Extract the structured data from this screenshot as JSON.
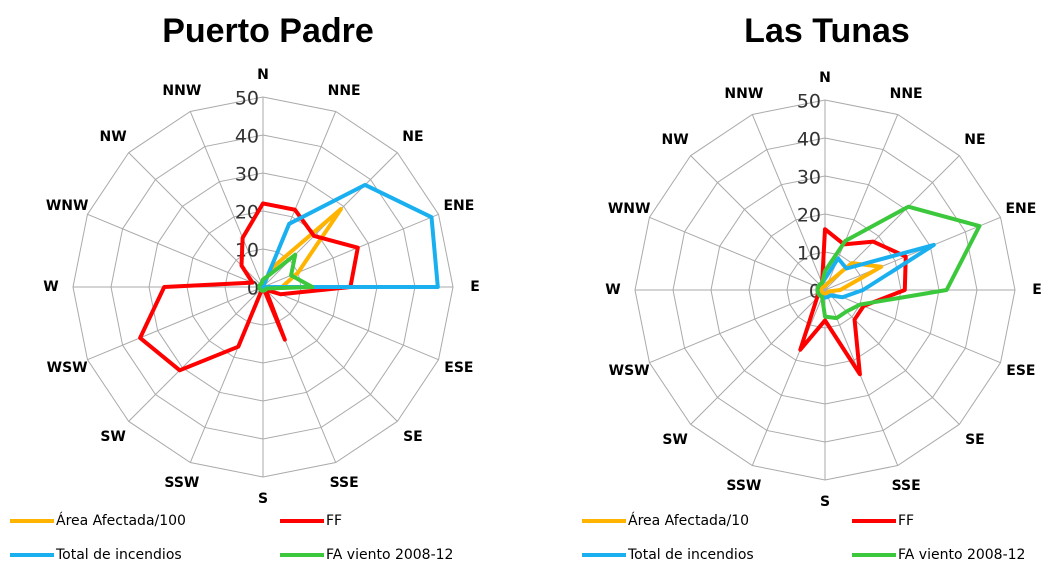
{
  "chart_data": [
    {
      "type": "radar",
      "title": "Puerto Padre",
      "categories": [
        "N",
        "NNE",
        "NE",
        "ENE",
        "E",
        "ESE",
        "SE",
        "SSE",
        "S",
        "SSW",
        "SW",
        "WSW",
        "W",
        "WNW",
        "NW",
        "NNW"
      ],
      "rlim": [
        0,
        50
      ],
      "rticks": [
        0,
        10,
        20,
        30,
        40,
        50
      ],
      "series": [
        {
          "name": "Área Afectada/100",
          "color": "#ffb400",
          "values": [
            0,
            5,
            29,
            10,
            5,
            0,
            0,
            0,
            0,
            0,
            0,
            0,
            0,
            0,
            0,
            0
          ]
        },
        {
          "name": "FF",
          "color": "#ff0000",
          "values": [
            22,
            22,
            19,
            27,
            23,
            5,
            1,
            15,
            0,
            17,
            31,
            35,
            26,
            3,
            8,
            14
          ]
        },
        {
          "name": "Total de incendios",
          "color": "#1ab0f0",
          "values": [
            0,
            18,
            38,
            48,
            46,
            0,
            0,
            0,
            0,
            0,
            0,
            0,
            0,
            0,
            0,
            0
          ]
        },
        {
          "name": "FA viento 2008-12",
          "color": "#3cc83c",
          "values": [
            2,
            3,
            12,
            8,
            13,
            1,
            1,
            1,
            1,
            1,
            1,
            1,
            1,
            1,
            1,
            1
          ]
        }
      ]
    },
    {
      "type": "radar",
      "title": "Las Tunas",
      "categories": [
        "N",
        "NNE",
        "NE",
        "ENE",
        "E",
        "ESE",
        "SE",
        "SSE",
        "S",
        "SSW",
        "SW",
        "WSW",
        "W",
        "WNW",
        "NW",
        "NNW"
      ],
      "rlim": [
        0,
        50
      ],
      "rticks": [
        0,
        10,
        20,
        30,
        40,
        50
      ],
      "series": [
        {
          "name": "Área Afectada/10",
          "color": "#ffb400",
          "values": [
            1,
            2,
            10,
            16,
            4,
            1,
            1,
            1,
            1,
            1,
            1,
            1,
            1,
            1,
            1,
            1
          ]
        },
        {
          "name": "FF",
          "color": "#ff0000",
          "values": [
            16,
            13,
            18,
            23,
            21,
            11,
            11,
            24,
            8,
            17,
            3,
            2,
            2,
            2,
            2,
            2
          ]
        },
        {
          "name": "Total de incendios",
          "color": "#1ab0f0",
          "values": [
            3,
            9,
            8,
            31,
            10,
            5,
            2,
            2,
            2,
            2,
            2,
            2,
            2,
            2,
            2,
            2
          ]
        },
        {
          "name": "FA viento 2008-12",
          "color": "#3cc83c",
          "values": [
            5,
            14,
            31,
            44,
            32,
            10,
            8,
            8,
            7,
            2,
            2,
            2,
            2,
            2,
            2,
            2
          ]
        }
      ]
    }
  ]
}
